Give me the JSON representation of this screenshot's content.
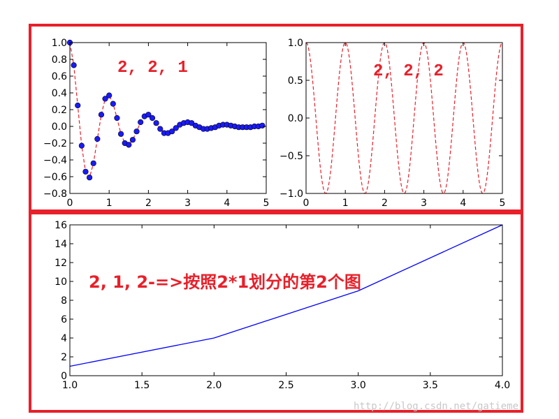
{
  "colors": {
    "highlight_box": "#e8202a",
    "annotation": "#e8202a",
    "dashed_line": "#e8202a",
    "markers": "#1a1aff",
    "solid_line": "#0000ff",
    "watermark": "#c8c8c8"
  },
  "watermark": "http://blog.csdn.net/gatieme",
  "chart_data": [
    {
      "type": "line",
      "subplot": "2,2,1",
      "annotation": "2, 2, 1",
      "xlim": [
        0,
        5
      ],
      "ylim": [
        -0.8,
        1.0
      ],
      "xticks": [
        "0",
        "1",
        "2",
        "3",
        "4",
        "5"
      ],
      "yticks": [
        "−0.8",
        "−0.6",
        "−0.4",
        "−0.2",
        "0.0",
        "0.2",
        "0.4",
        "0.6",
        "0.8",
        "1.0"
      ],
      "grid": false,
      "series": [
        {
          "style": "dashed+markers",
          "x": [
            0.0,
            0.1,
            0.2,
            0.3,
            0.4,
            0.5,
            0.6,
            0.7,
            0.8,
            0.9,
            1.0,
            1.1,
            1.2,
            1.3,
            1.4,
            1.5,
            1.6,
            1.7,
            1.8,
            1.9,
            2.0,
            2.1,
            2.2,
            2.3,
            2.4,
            2.5,
            2.6,
            2.7,
            2.8,
            2.9,
            3.0,
            3.1,
            3.2,
            3.3,
            3.4,
            3.5,
            3.6,
            3.7,
            3.8,
            3.9,
            4.0,
            4.1,
            4.2,
            4.3,
            4.4,
            4.5,
            4.6,
            4.7,
            4.8,
            4.9
          ],
          "y": [
            1.0,
            0.73,
            0.25,
            -0.23,
            -0.54,
            -0.61,
            -0.44,
            -0.15,
            0.14,
            0.33,
            0.37,
            0.27,
            0.1,
            -0.09,
            -0.2,
            -0.22,
            -0.16,
            -0.06,
            0.05,
            0.12,
            0.14,
            0.1,
            0.04,
            -0.03,
            -0.08,
            -0.08,
            -0.06,
            -0.02,
            0.02,
            0.04,
            0.05,
            0.04,
            0.01,
            -0.01,
            -0.03,
            -0.03,
            -0.02,
            -0.01,
            0.01,
            0.02,
            0.02,
            0.01,
            0.0,
            -0.01,
            -0.01,
            -0.01,
            -0.01,
            0.0,
            0.0,
            0.01
          ]
        }
      ]
    },
    {
      "type": "line",
      "subplot": "2,2,2",
      "annotation": "2, 2, 2",
      "xlim": [
        0,
        5
      ],
      "ylim": [
        -1.0,
        1.0
      ],
      "xticks": [
        "0",
        "1",
        "2",
        "3",
        "4",
        "5"
      ],
      "yticks": [
        "−1.0",
        "−0.5",
        "0.0",
        "0.5",
        "1.0"
      ],
      "grid": false,
      "series": [
        {
          "style": "dashed",
          "function": "cos(2*pi*x)",
          "x_start": 0,
          "x_end": 5
        }
      ]
    },
    {
      "type": "line",
      "subplot": "2,1,2",
      "annotation": "2, 1, 2-=>按照2*1划分的第2个图",
      "xlim": [
        1.0,
        4.0
      ],
      "ylim": [
        0,
        16
      ],
      "xticks": [
        "1.0",
        "1.5",
        "2.0",
        "2.5",
        "3.0",
        "3.5",
        "4.0"
      ],
      "yticks": [
        "0",
        "2",
        "4",
        "6",
        "8",
        "10",
        "12",
        "14",
        "16"
      ],
      "grid": false,
      "series": [
        {
          "style": "solid",
          "x": [
            1,
            2,
            3,
            4
          ],
          "y": [
            1,
            4,
            9,
            16
          ]
        }
      ]
    }
  ]
}
